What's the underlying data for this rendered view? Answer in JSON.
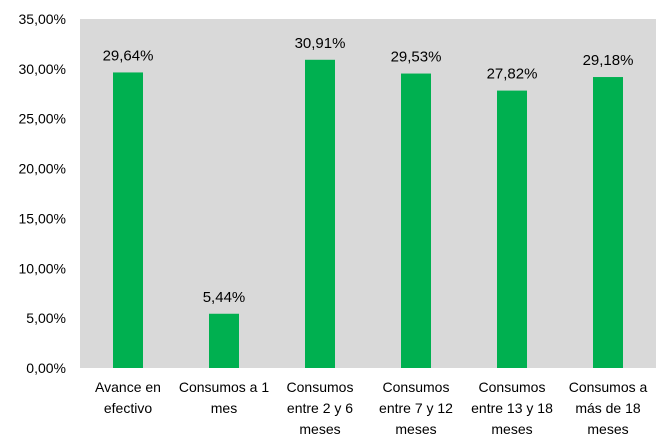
{
  "chart_data": {
    "type": "bar",
    "categories": [
      [
        "Avance en",
        "efectivo"
      ],
      [
        "Consumos a 1",
        "mes"
      ],
      [
        "Consumos",
        "entre 2 y 6",
        "meses"
      ],
      [
        "Consumos",
        "entre 7 y 12",
        "meses"
      ],
      [
        "Consumos",
        "entre 13 y 18",
        "meses"
      ],
      [
        "Consumos a",
        "más de 18",
        "meses"
      ]
    ],
    "values": [
      29.64,
      5.44,
      30.91,
      29.53,
      27.82,
      29.18
    ],
    "data_labels": [
      "29,64%",
      "5,44%",
      "30,91%",
      "29,53%",
      "27,82%",
      "29,18%"
    ],
    "yticks": [
      0,
      5,
      10,
      15,
      20,
      25,
      30,
      35
    ],
    "ytick_labels": [
      "0,00%",
      "5,00%",
      "10,00%",
      "15,00%",
      "20,00%",
      "25,00%",
      "30,00%",
      "35,00%"
    ],
    "ylim": [
      0,
      35
    ],
    "grid": false,
    "legend": "none",
    "title": "",
    "xlabel": "",
    "ylabel": "",
    "colors": {
      "bar": "#00B050",
      "plot_background": "#D9D9D9",
      "page_background": "#FFFFFF",
      "text": "#000000"
    }
  }
}
